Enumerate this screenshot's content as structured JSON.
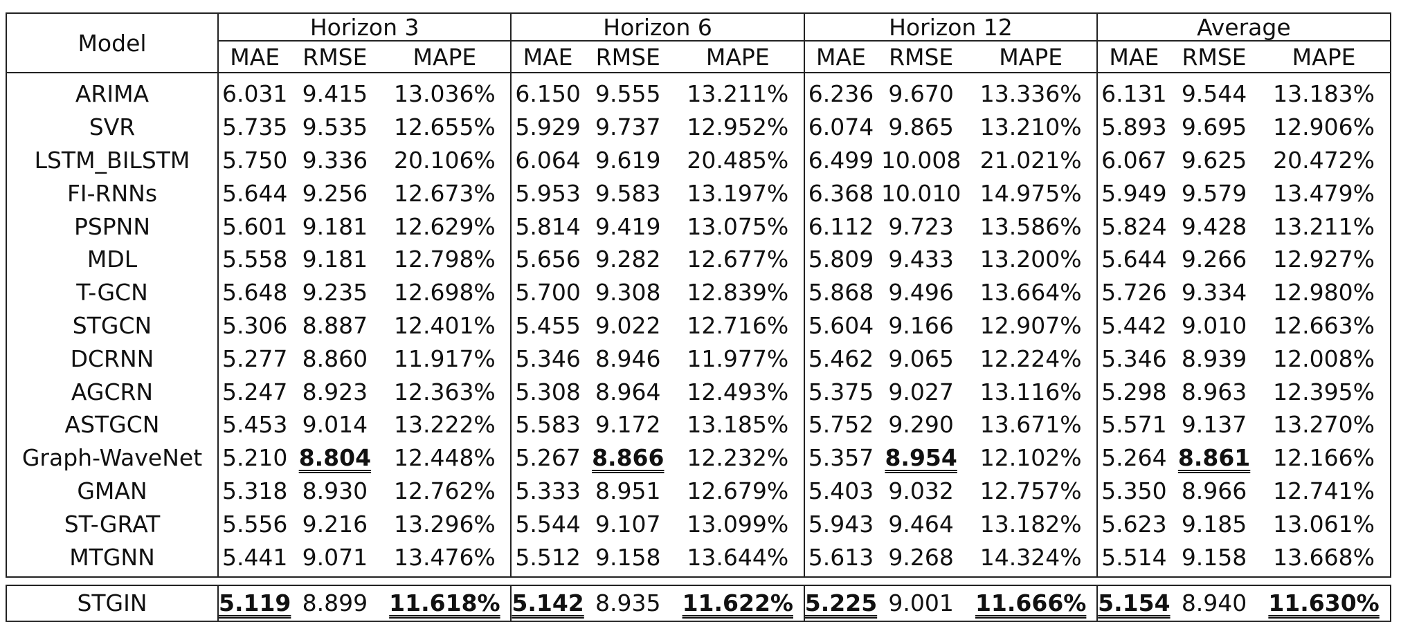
{
  "header": {
    "model_label": "Model",
    "groups": [
      "Horizon 3",
      "Horizon 6",
      "Horizon 12",
      "Average"
    ],
    "metrics": [
      "MAE",
      "RMSE",
      "MAPE"
    ]
  },
  "rows": [
    {
      "model": "ARIMA",
      "values": [
        "6.031",
        "9.415",
        "13.036%",
        "6.150",
        "9.555",
        "13.211%",
        "6.236",
        "9.670",
        "13.336%",
        "6.131",
        "9.544",
        "13.183%"
      ],
      "best": []
    },
    {
      "model": "SVR",
      "values": [
        "5.735",
        "9.535",
        "12.655%",
        "5.929",
        "9.737",
        "12.952%",
        "6.074",
        "9.865",
        "13.210%",
        "5.893",
        "9.695",
        "12.906%"
      ],
      "best": []
    },
    {
      "model": "LSTM_BILSTM",
      "values": [
        "5.750",
        "9.336",
        "20.106%",
        "6.064",
        "9.619",
        "20.485%",
        "6.499",
        "10.008",
        "21.021%",
        "6.067",
        "9.625",
        "20.472%"
      ],
      "best": []
    },
    {
      "model": "FI-RNNs",
      "values": [
        "5.644",
        "9.256",
        "12.673%",
        "5.953",
        "9.583",
        "13.197%",
        "6.368",
        "10.010",
        "14.975%",
        "5.949",
        "9.579",
        "13.479%"
      ],
      "best": []
    },
    {
      "model": "PSPNN",
      "values": [
        "5.601",
        "9.181",
        "12.629%",
        "5.814",
        "9.419",
        "13.075%",
        "6.112",
        "9.723",
        "13.586%",
        "5.824",
        "9.428",
        "13.211%"
      ],
      "best": []
    },
    {
      "model": "MDL",
      "values": [
        "5.558",
        "9.181",
        "12.798%",
        "5.656",
        "9.282",
        "12.677%",
        "5.809",
        "9.433",
        "13.200%",
        "5.644",
        "9.266",
        "12.927%"
      ],
      "best": []
    },
    {
      "model": "T-GCN",
      "values": [
        "5.648",
        "9.235",
        "12.698%",
        "5.700",
        "9.308",
        "12.839%",
        "5.868",
        "9.496",
        "13.664%",
        "5.726",
        "9.334",
        "12.980%"
      ],
      "best": []
    },
    {
      "model": "STGCN",
      "values": [
        "5.306",
        "8.887",
        "12.401%",
        "5.455",
        "9.022",
        "12.716%",
        "5.604",
        "9.166",
        "12.907%",
        "5.442",
        "9.010",
        "12.663%"
      ],
      "best": []
    },
    {
      "model": "DCRNN",
      "values": [
        "5.277",
        "8.860",
        "11.917%",
        "5.346",
        "8.946",
        "11.977%",
        "5.462",
        "9.065",
        "12.224%",
        "5.346",
        "8.939",
        "12.008%"
      ],
      "best": []
    },
    {
      "model": "AGCRN",
      "values": [
        "5.247",
        "8.923",
        "12.363%",
        "5.308",
        "8.964",
        "12.493%",
        "5.375",
        "9.027",
        "13.116%",
        "5.298",
        "8.963",
        "12.395%"
      ],
      "best": []
    },
    {
      "model": "ASTGCN",
      "values": [
        "5.453",
        "9.014",
        "13.222%",
        "5.583",
        "9.172",
        "13.185%",
        "5.752",
        "9.290",
        "13.671%",
        "5.571",
        "9.137",
        "13.270%"
      ],
      "best": []
    },
    {
      "model": "Graph-WaveNet",
      "values": [
        "5.210",
        "8.804",
        "12.448%",
        "5.267",
        "8.866",
        "12.232%",
        "5.357",
        "8.954",
        "12.102%",
        "5.264",
        "8.861",
        "12.166%"
      ],
      "best": [
        1,
        4,
        7,
        10
      ]
    },
    {
      "model": "GMAN",
      "values": [
        "5.318",
        "8.930",
        "12.762%",
        "5.333",
        "8.951",
        "12.679%",
        "5.403",
        "9.032",
        "12.757%",
        "5.350",
        "8.966",
        "12.741%"
      ],
      "best": []
    },
    {
      "model": "ST-GRAT",
      "values": [
        "5.556",
        "9.216",
        "13.296%",
        "5.544",
        "9.107",
        "13.099%",
        "5.943",
        "9.464",
        "13.182%",
        "5.623",
        "9.185",
        "13.061%"
      ],
      "best": []
    },
    {
      "model": "MTGNN",
      "values": [
        "5.441",
        "9.071",
        "13.476%",
        "5.512",
        "9.158",
        "13.644%",
        "5.613",
        "9.268",
        "14.324%",
        "5.514",
        "9.158",
        "13.668%"
      ],
      "best": []
    }
  ],
  "final_row": {
    "model": "STGIN",
    "values": [
      "5.119",
      "8.899",
      "11.618%",
      "5.142",
      "8.935",
      "11.622%",
      "5.225",
      "9.001",
      "11.666%",
      "5.154",
      "8.940",
      "11.630%"
    ],
    "best": [
      0,
      2,
      3,
      5,
      6,
      8,
      9,
      11
    ]
  }
}
